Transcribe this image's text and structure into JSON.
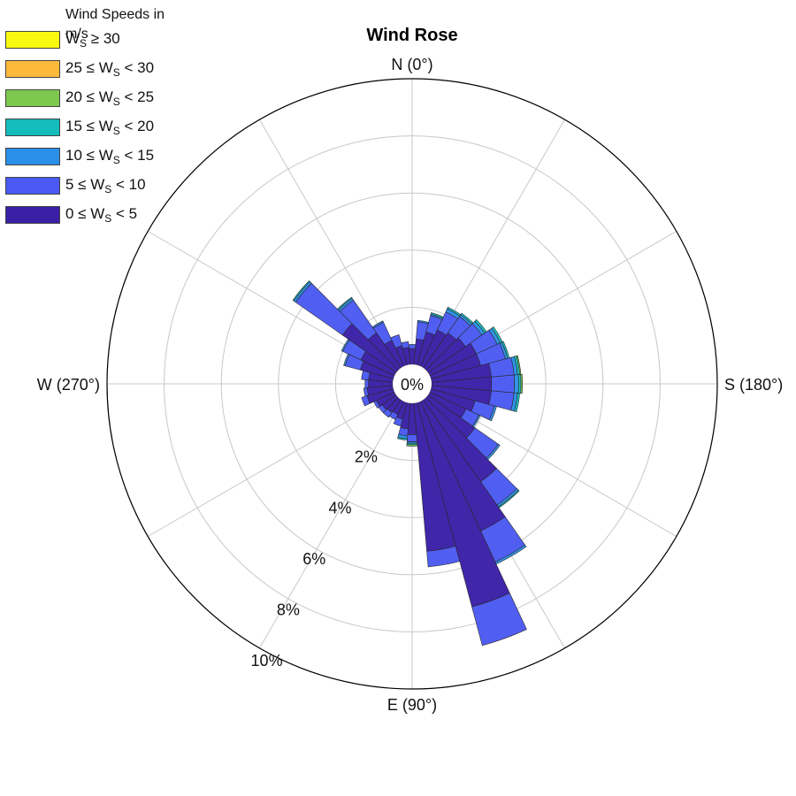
{
  "chart_data": {
    "type": "wind-rose",
    "title": "Wind Rose",
    "legend_title": "Wind Speeds in m/s",
    "center_label": "0%",
    "radial_ticks": [
      "2%",
      "4%",
      "6%",
      "8%",
      "10%"
    ],
    "radial_tick_values": [
      2,
      4,
      6,
      8,
      10
    ],
    "radial_max": 10,
    "direction_labels": [
      {
        "angle": 0,
        "text": "N (0°)"
      },
      {
        "angle": 90,
        "text": "E (90°)"
      },
      {
        "angle": 180,
        "text": "S (180°)"
      },
      {
        "angle": 270,
        "text": "W (270°)"
      }
    ],
    "angle_convention": "0° at top, angle increases counterclockwise",
    "speed_bins": [
      {
        "label": "0 ≤ W_S < 5",
        "color": "#3a1fa6"
      },
      {
        "label": "5 ≤ W_S < 10",
        "color": "#4a5af2"
      },
      {
        "label": "10 ≤ W_S < 15",
        "color": "#2a8fe6"
      },
      {
        "label": "15 ≤ W_S < 20",
        "color": "#14bcbc"
      },
      {
        "label": "20 ≤ W_S < 25",
        "color": "#7ec850"
      },
      {
        "label": "25 ≤ W_S < 30",
        "color": "#fdb93b"
      },
      {
        "label": "W_S ≥ 30",
        "color": "#f9f90f"
      }
    ],
    "sector_width_deg": 10,
    "sectors": [
      {
        "dir": 0,
        "values": [
          0.55,
          0.15
        ]
      },
      {
        "dir": 10,
        "values": [
          0.6,
          0.2
        ]
      },
      {
        "dir": 20,
        "values": [
          0.7,
          0.4
        ]
      },
      {
        "dir": 30,
        "values": [
          1.0,
          0.7,
          0.05
        ]
      },
      {
        "dir": 40,
        "values": [
          1.5,
          1.4,
          0.08,
          0.04
        ]
      },
      {
        "dir": 50,
        "values": [
          2.3,
          2.0,
          0.08,
          0.04
        ]
      },
      {
        "dir": 60,
        "values": [
          1.3,
          0.7,
          0.05
        ]
      },
      {
        "dir": 70,
        "values": [
          1.2,
          0.55,
          0.05
        ]
      },
      {
        "dir": 80,
        "values": [
          0.85,
          0.25
        ]
      },
      {
        "dir": 90,
        "values": [
          0.85,
          0.12
        ]
      },
      {
        "dir": 100,
        "values": [
          0.9,
          0.12
        ]
      },
      {
        "dir": 110,
        "values": [
          0.95,
          0.2
        ]
      },
      {
        "dir": 120,
        "values": [
          0.7,
          0.1
        ]
      },
      {
        "dir": 130,
        "values": [
          0.6,
          0.15
        ]
      },
      {
        "dir": 140,
        "values": [
          0.55,
          0.2
        ]
      },
      {
        "dir": 150,
        "values": [
          0.5,
          0.2
        ]
      },
      {
        "dir": 160,
        "values": [
          0.6,
          0.25
        ]
      },
      {
        "dir": 170,
        "values": [
          0.9,
          0.25,
          0.1,
          0.05
        ]
      },
      {
        "dir": 180,
        "values": [
          1.1,
          0.25,
          0.05,
          0.05,
          0.05
        ]
      },
      {
        "dir": 190,
        "values": [
          5.2,
          0.55
        ]
      },
      {
        "dir": 200,
        "values": [
          7.4,
          1.4
        ]
      },
      {
        "dir": 210,
        "values": [
          5.0,
          1.2,
          0.08
        ]
      },
      {
        "dir": 220,
        "values": [
          3.5,
          1.0,
          0.08,
          0.04
        ]
      },
      {
        "dir": 230,
        "values": [
          2.0,
          1.0,
          0.07
        ]
      },
      {
        "dir": 240,
        "values": [
          1.4,
          0.5,
          0.05
        ]
      },
      {
        "dir": 250,
        "values": [
          1.6,
          0.7,
          0.08
        ]
      },
      {
        "dir": 260,
        "values": [
          2.1,
          0.8,
          0.12,
          0.08
        ]
      },
      {
        "dir": 270,
        "values": [
          2.1,
          0.8,
          0.15,
          0.08,
          0.05
        ]
      },
      {
        "dir": 280,
        "values": [
          2.1,
          0.8,
          0.12,
          0.08,
          0.04
        ]
      },
      {
        "dir": 290,
        "values": [
          1.8,
          0.9,
          0.08,
          0.06
        ]
      },
      {
        "dir": 300,
        "values": [
          1.8,
          0.8,
          0.12,
          0.08
        ]
      },
      {
        "dir": 310,
        "values": [
          1.6,
          0.7,
          0.12,
          0.08
        ]
      },
      {
        "dir": 320,
        "values": [
          1.5,
          0.7,
          0.08,
          0.06
        ]
      },
      {
        "dir": 330,
        "values": [
          1.4,
          0.7,
          0.12,
          0.06
        ]
      },
      {
        "dir": 340,
        "values": [
          1.2,
          0.6,
          0.05,
          0.05
        ]
      },
      {
        "dir": 350,
        "values": [
          0.9,
          0.6,
          0.05
        ]
      }
    ]
  }
}
